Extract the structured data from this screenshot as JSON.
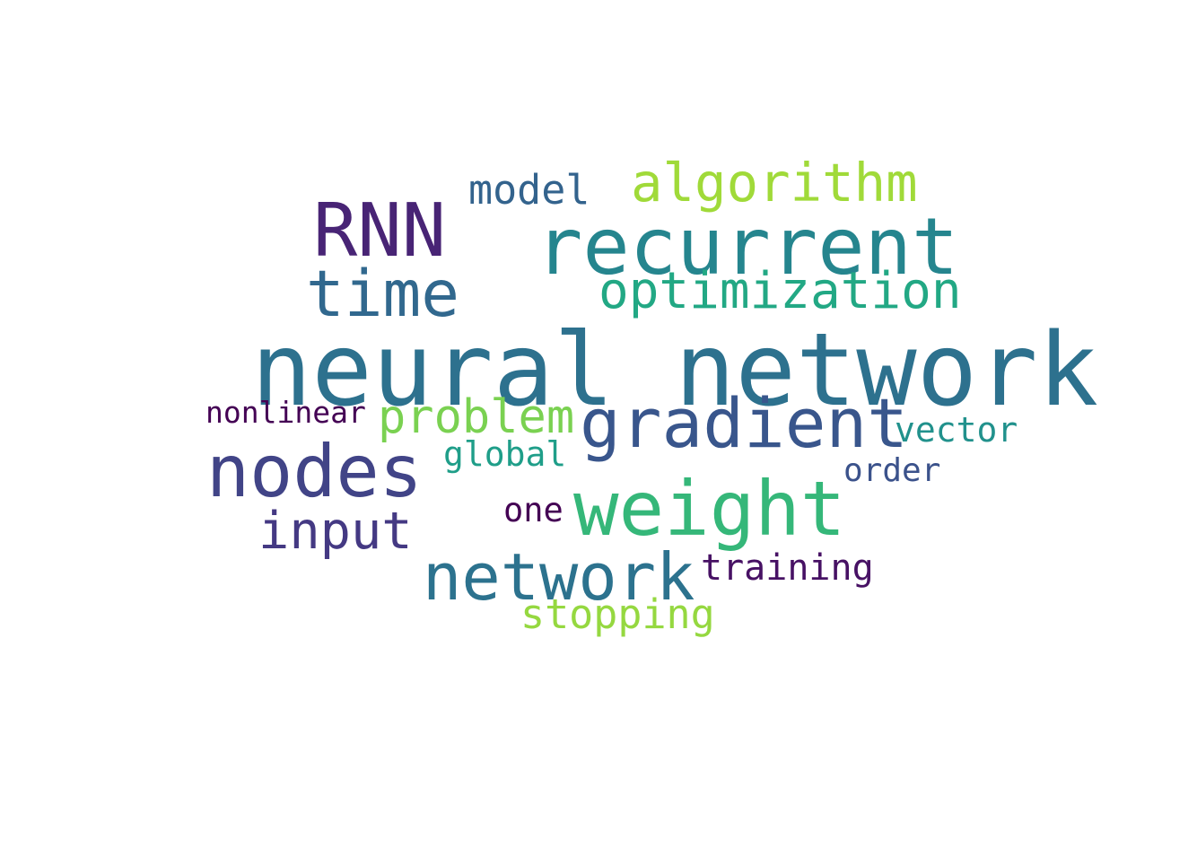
{
  "words": {
    "neural_network": {
      "text": "neural network",
      "color": "#2d718e"
    },
    "recurrent": {
      "text": "recurrent",
      "color": "#25858e"
    },
    "rnn": {
      "text": "RNN",
      "color": "#482475"
    },
    "time": {
      "text": "time",
      "color": "#31688e"
    },
    "algorithm": {
      "text": "algorithm",
      "color": "#a0da39"
    },
    "model": {
      "text": "model",
      "color": "#33638d"
    },
    "optimization": {
      "text": "optimization",
      "color": "#22a884"
    },
    "gradient": {
      "text": "gradient",
      "color": "#39568c"
    },
    "problem": {
      "text": "problem",
      "color": "#7ad151"
    },
    "nonlinear": {
      "text": "nonlinear",
      "color": "#440154"
    },
    "vector": {
      "text": "vector",
      "color": "#21918c"
    },
    "nodes": {
      "text": "nodes",
      "color": "#414487"
    },
    "global": {
      "text": "global",
      "color": "#1f9e89"
    },
    "order": {
      "text": "order",
      "color": "#3b528b"
    },
    "weight": {
      "text": "weight",
      "color": "#35b779"
    },
    "one": {
      "text": "one",
      "color": "#440154"
    },
    "input": {
      "text": "input",
      "color": "#443983"
    },
    "network": {
      "text": "network",
      "color": "#2c728e"
    },
    "training": {
      "text": "training",
      "color": "#471164"
    },
    "stopping": {
      "text": "stopping",
      "color": "#95d840"
    }
  }
}
